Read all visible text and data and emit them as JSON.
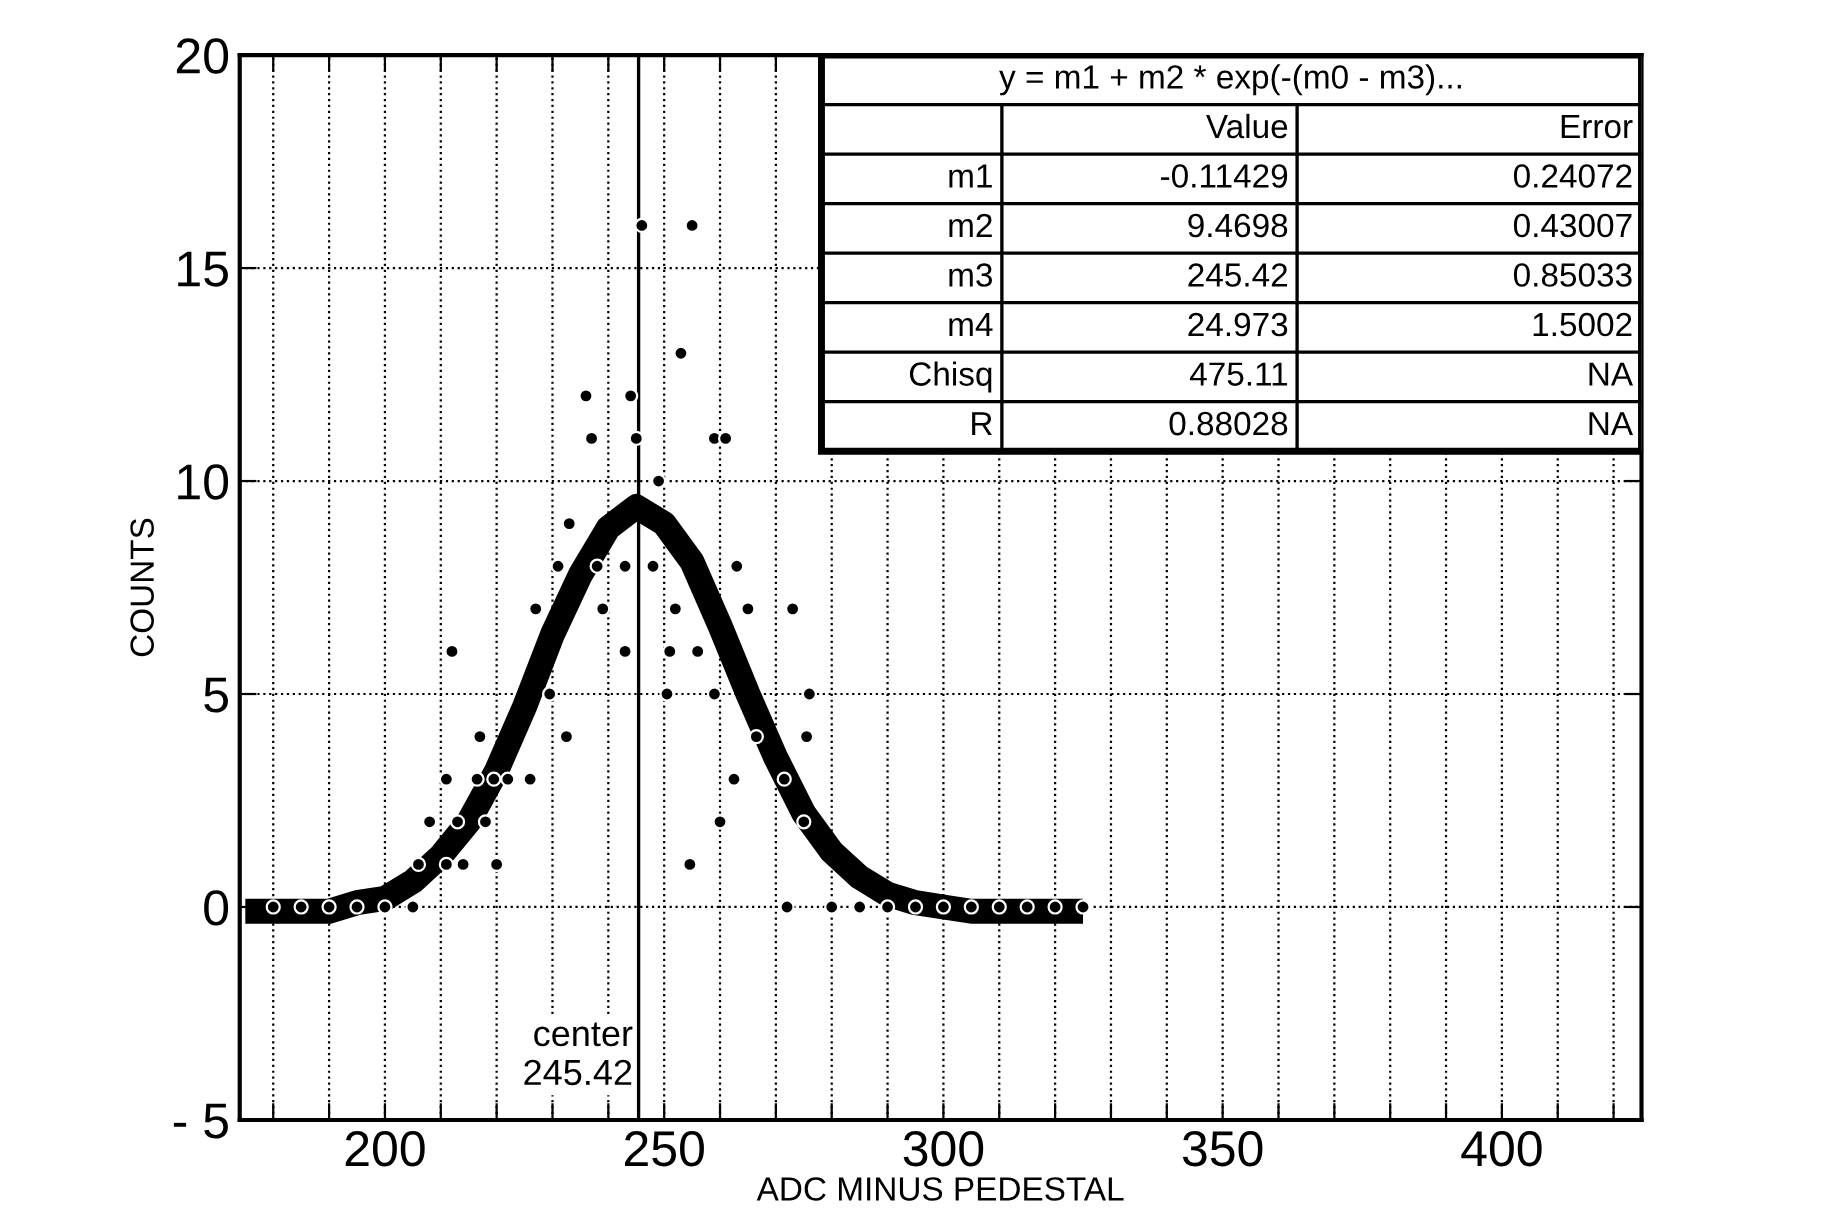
{
  "chart_data": {
    "type": "scatter",
    "xlabel": "ADC MINUS PEDESTAL",
    "ylabel": "COUNTS",
    "xlim": [
      174,
      425
    ],
    "ylim": [
      -5,
      20
    ],
    "xticks": [
      {
        "value": 180,
        "label": null
      },
      {
        "value": 190,
        "label": null
      },
      200,
      {
        "value": 210,
        "label": null
      },
      {
        "value": 220,
        "label": null
      },
      {
        "value": 230,
        "label": null
      },
      {
        "value": 240,
        "label": null
      },
      250,
      {
        "value": 260,
        "label": null
      },
      {
        "value": 270,
        "label": null
      },
      {
        "value": 280,
        "label": null
      },
      {
        "value": 290,
        "label": null
      },
      300,
      {
        "value": 310,
        "label": null
      },
      {
        "value": 320,
        "label": null
      },
      {
        "value": 330,
        "label": null
      },
      {
        "value": 340,
        "label": null
      },
      350,
      {
        "value": 360,
        "label": null
      },
      {
        "value": 370,
        "label": null
      },
      {
        "value": 380,
        "label": null
      },
      {
        "value": 390,
        "label": null
      },
      400,
      {
        "value": 410,
        "label": null
      },
      {
        "value": 420,
        "label": null
      }
    ],
    "yticks": [
      {
        "value": -5,
        "label": "- 5"
      },
      0,
      5,
      10,
      15,
      20
    ],
    "grid": true,
    "series": [
      {
        "color": "#000000",
        "marker": "circle",
        "x": [
          246,
          255,
          253,
          236,
          244,
          237,
          245,
          259,
          261,
          249,
          233,
          231,
          238,
          243,
          248,
          263,
          227,
          239,
          252,
          265,
          273,
          212,
          243,
          251,
          256,
          229.5,
          250.5,
          259,
          276,
          217,
          232.5,
          266.5,
          275.5,
          211,
          216.5,
          219.5,
          222,
          226,
          262.5,
          271.5,
          208,
          213,
          218,
          260,
          275,
          206,
          211,
          214,
          220,
          254.6,
          180,
          185,
          190,
          195,
          200,
          205,
          272,
          280,
          285,
          290,
          295,
          300,
          305,
          310,
          315,
          320,
          325
        ],
        "values": [
          16,
          16,
          13,
          12,
          12,
          11,
          11,
          11,
          11,
          10,
          9,
          8,
          8,
          8,
          8,
          8,
          7,
          7,
          7,
          7,
          7,
          6,
          6,
          6,
          6,
          5,
          5,
          5,
          5,
          4,
          4,
          4,
          4,
          3,
          3,
          3,
          3,
          3,
          3,
          3,
          2,
          2,
          2,
          2,
          2,
          1,
          1,
          1,
          1,
          1,
          0,
          0,
          0,
          0,
          0,
          0,
          0,
          0,
          0,
          0,
          0,
          0,
          0,
          0,
          0,
          0,
          0
        ]
      },
      {
        "type": "line",
        "color": "#000000",
        "line_style": "solid",
        "marker": "none",
        "x": [
          175,
          180,
          185,
          190,
          195,
          200,
          205,
          210,
          215,
          220,
          225,
          230,
          235,
          240,
          245,
          250,
          255,
          260,
          265,
          270,
          275,
          280,
          285,
          290,
          295,
          300,
          305,
          310,
          315,
          320,
          325
        ],
        "values": [
          -0.1,
          -0.1,
          -0.1,
          -0.1,
          0.1,
          0.2,
          0.6,
          1.2,
          2.0,
          3.2,
          4.7,
          6.4,
          7.8,
          8.9,
          9.4,
          9.0,
          8.1,
          6.6,
          5.0,
          3.5,
          2.2,
          1.3,
          0.7,
          0.3,
          0.1,
          0.0,
          -0.1,
          -0.1,
          -0.1,
          -0.1,
          -0.1
        ]
      }
    ],
    "ref_lines": [
      {
        "axis": "x",
        "value": 245.42,
        "label": "center\n245.42",
        "color": "#000000"
      }
    ],
    "annotations": [
      "y = m1 + m2 * exp(-(m0 - m3)...",
      "Value",
      "Error",
      "m1",
      "-0.11429",
      "0.24072",
      "m2",
      "9.4698",
      "0.43007",
      "m3",
      "245.42",
      "0.85033",
      "m4",
      "24.973",
      "1.5002",
      "Chisq",
      "475.11",
      "NA",
      "R",
      "0.88028",
      "NA"
    ]
  }
}
